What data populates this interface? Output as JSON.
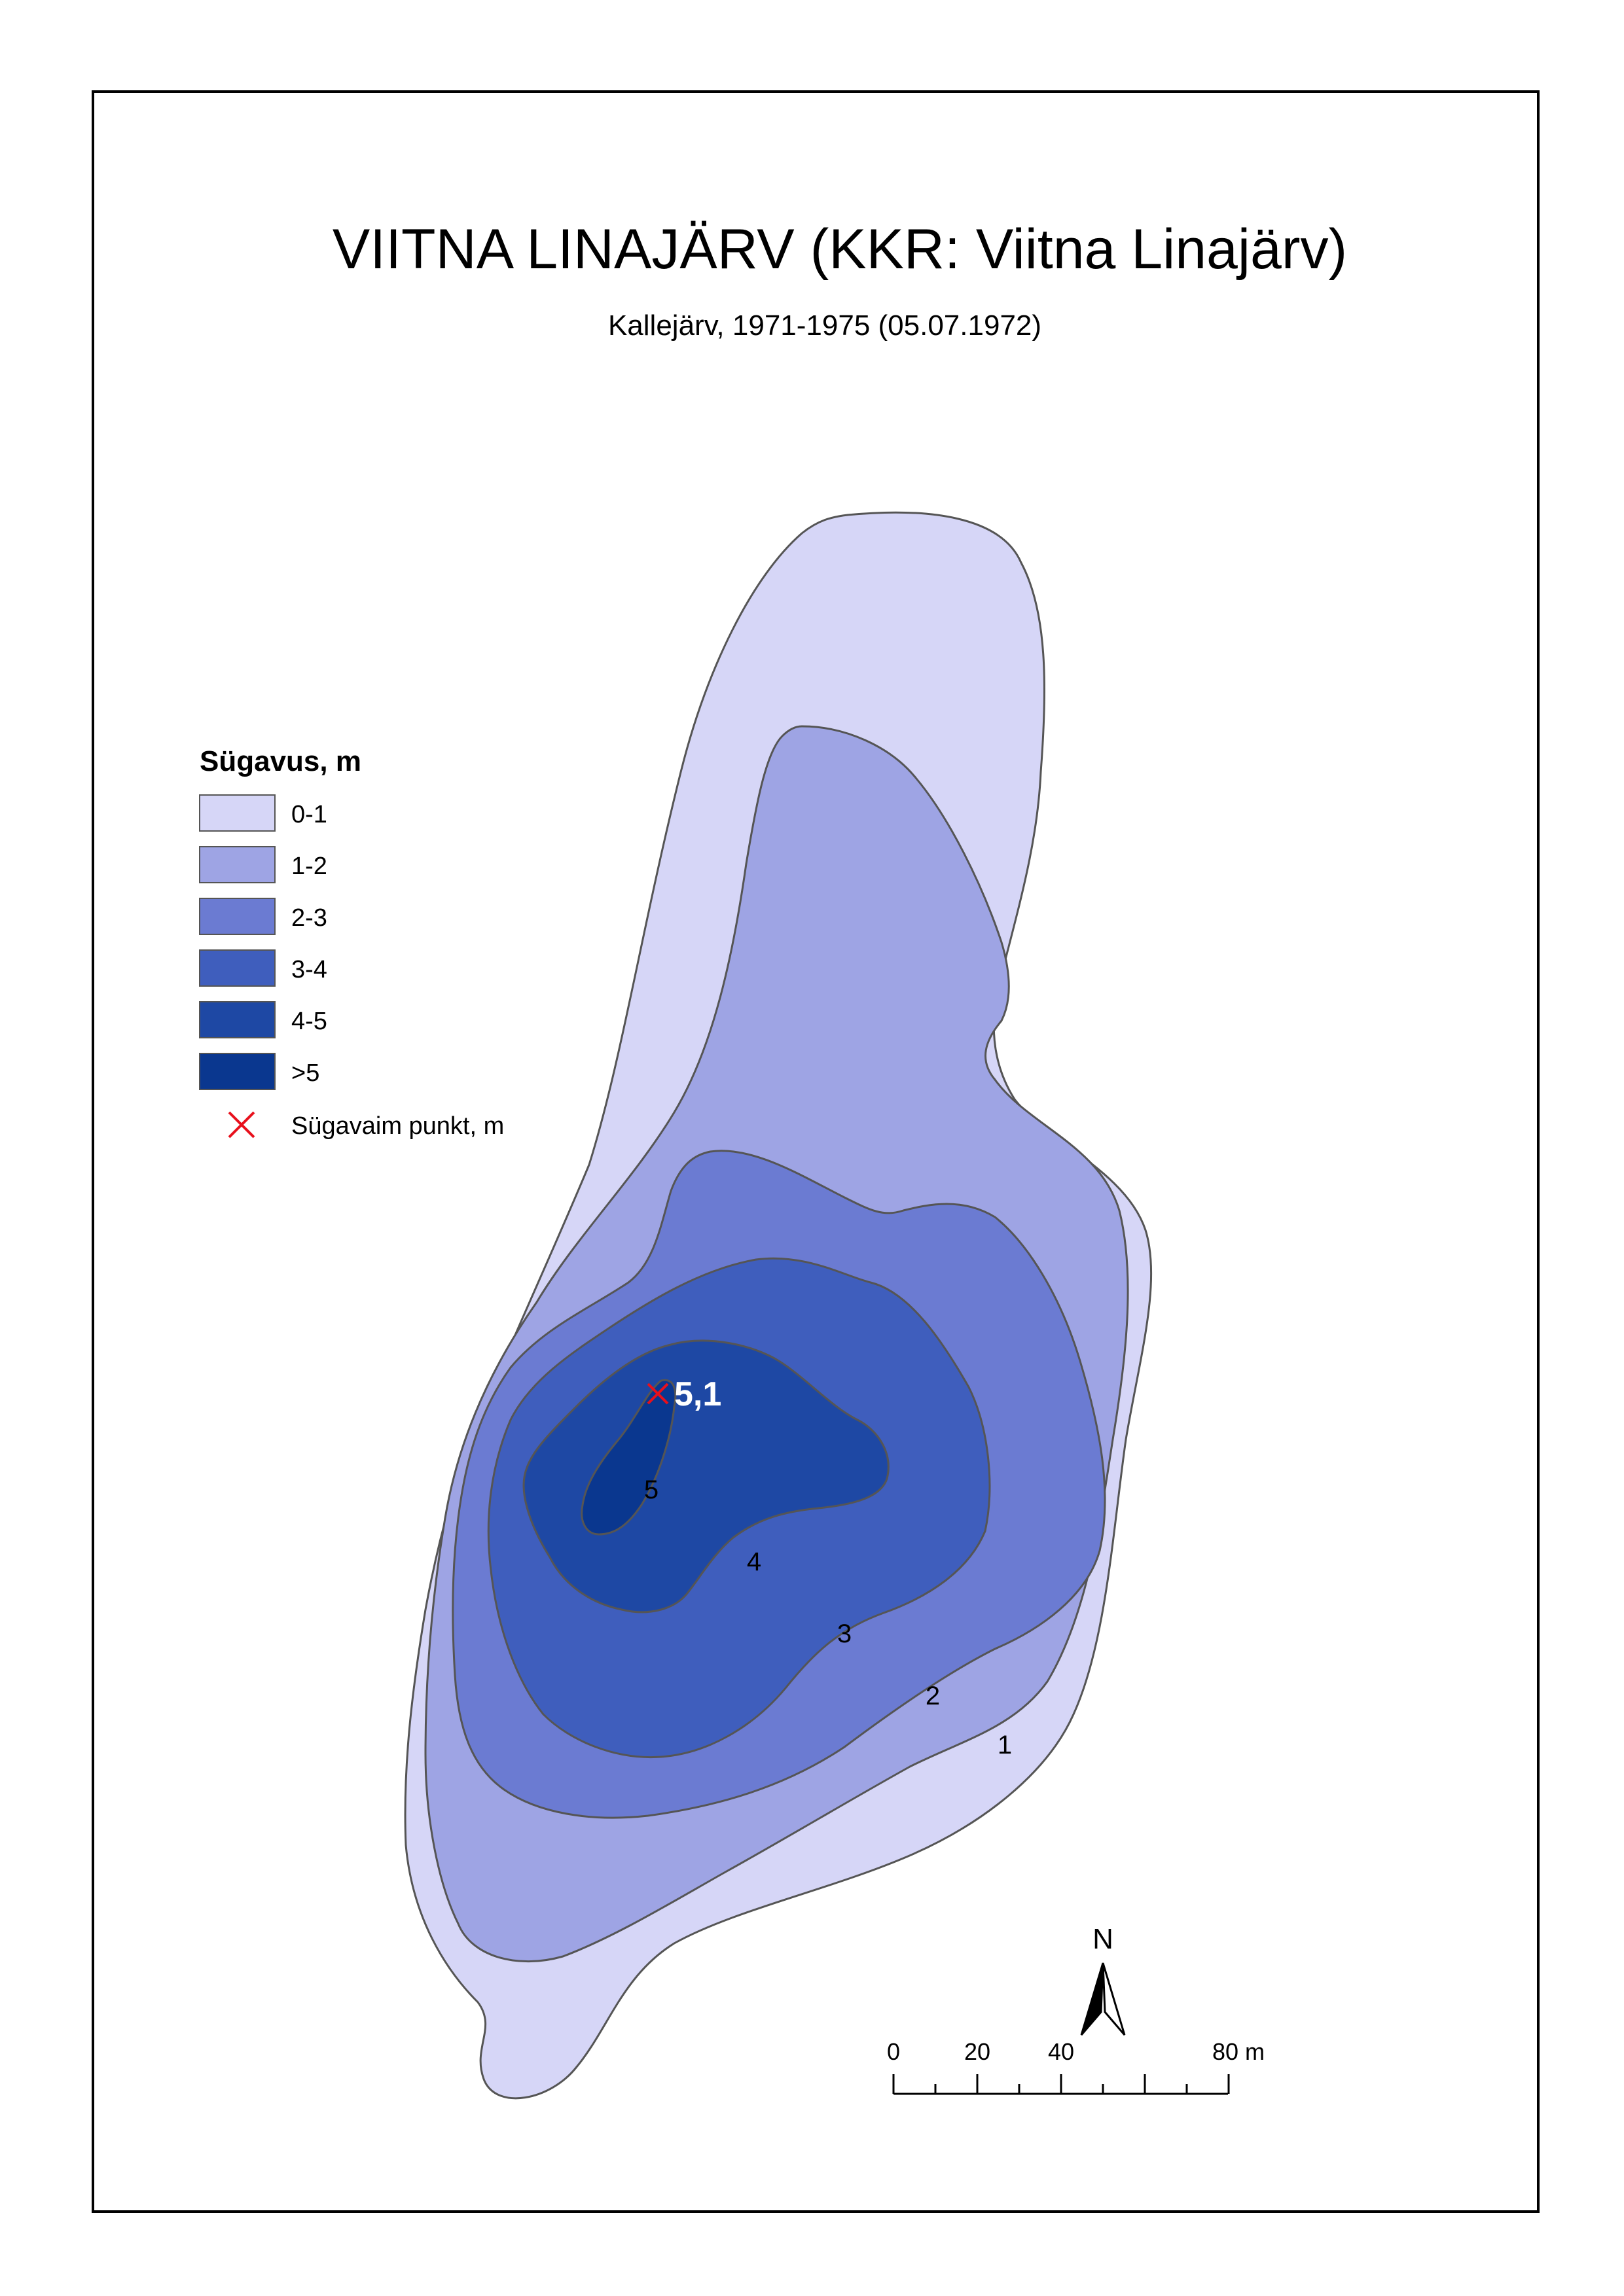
{
  "map": {
    "title": "VIITNA LINAJÄRV (KKR: Viitna Linajärv)",
    "subtitle": "Kallejärv, 1971-1975 (05.07.1972)"
  },
  "legend": {
    "title": "Sügavus, m",
    "classes": [
      {
        "label": "0-1",
        "color": "#d6d6f7"
      },
      {
        "label": "1-2",
        "color": "#9ea4e4"
      },
      {
        "label": "2-3",
        "color": "#6b7bd2"
      },
      {
        "label": "3-4",
        "color": "#3f5ebd"
      },
      {
        "label": "4-5",
        "color": "#1e48a4"
      },
      {
        "label": ">5",
        "color": "#0a378f"
      }
    ],
    "deepest_point": {
      "label": "Sügavaim punkt, m",
      "color": "#e8101c",
      "icon": "x-marker-icon"
    }
  },
  "contour_labels": [
    "1",
    "2",
    "3",
    "4",
    "5"
  ],
  "deepest_value": "5,1",
  "north_arrow": {
    "label": "N",
    "icon": "north-arrow-icon"
  },
  "scale_bar": {
    "labels": [
      "0",
      "20",
      "40",
      "80 m"
    ]
  }
}
